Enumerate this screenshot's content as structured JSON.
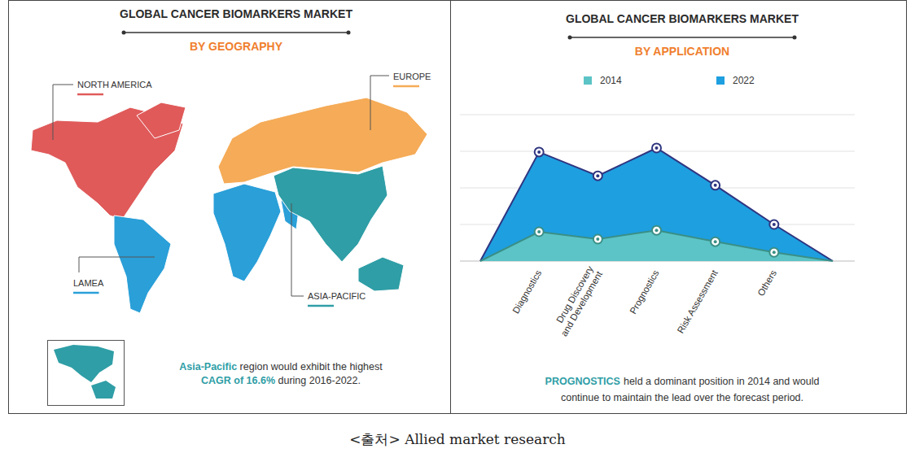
{
  "map": {
    "title": "GLOBAL CANCER BIOMARKERS MARKET",
    "subtitle": "BY GEOGRAPHY",
    "regions": [
      {
        "name": "NORTH AMERICA",
        "color": "#e05a5a"
      },
      {
        "name": "EUROPE",
        "color": "#f5ab57"
      },
      {
        "name": "LAMEA",
        "color": "#2a9fd8"
      },
      {
        "name": "ASIA-PACIFIC",
        "color": "#2f9ea6"
      }
    ],
    "note": [
      "Asia-Pacific",
      " region would exhibit the highest",
      "CAGR of 16.6%",
      " during 2016-2022."
    ]
  },
  "chart_data": {
    "type": "area",
    "title": "GLOBAL CANCER BIOMARKERS MARKET",
    "subtitle": "BY APPLICATION",
    "categories": [
      null,
      "Diagnostics",
      "Drug Discovery and Development",
      "Prognostics",
      "Risk Assessment",
      "Others",
      null
    ],
    "series": [
      {
        "name": "2014",
        "color": "#5cc4c6",
        "values": [
          0,
          0.8,
          0.6,
          0.84,
          0.53,
          0.24,
          0
        ]
      },
      {
        "name": "2022",
        "color": "#1e9fe0",
        "values": [
          0,
          2.98,
          2.33,
          3.09,
          2.07,
          1.0,
          0
        ]
      }
    ],
    "ylim": [
      0,
      4
    ],
    "yticks": [
      0,
      1,
      2,
      3,
      4
    ],
    "grid": true,
    "tick_labels": "x",
    "legend": "top",
    "marker": "circle",
    "annotations": [
      "PROGNOSTICS",
      "held a dominant position in 2014 and would",
      "continue to maintain the lead over the forecast period."
    ]
  },
  "caption": "<출처> Allied market research"
}
